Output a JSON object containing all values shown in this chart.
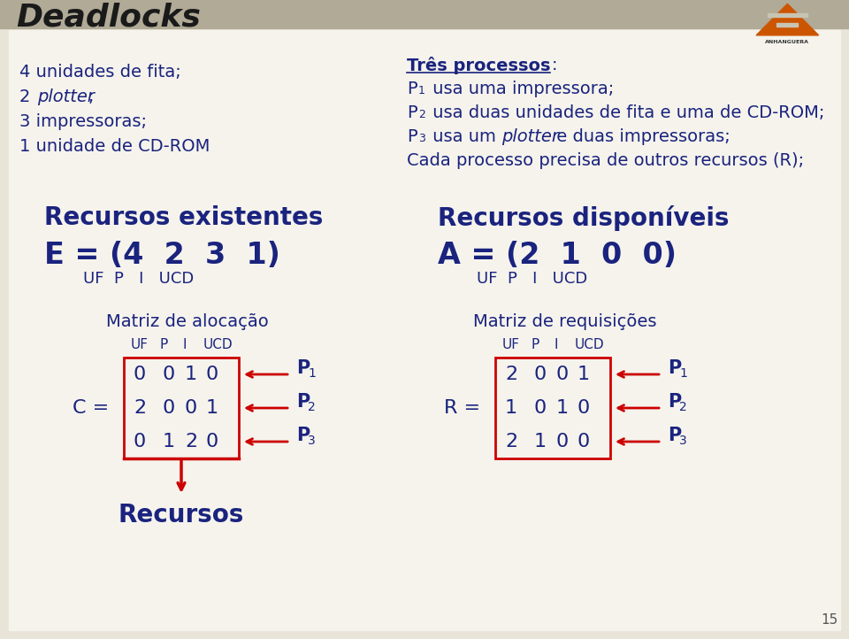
{
  "title": "Deadlocks",
  "bg_color": "#e8e4d8",
  "header_bg": "#c8c4b4",
  "white_bg": "#f5f3ec",
  "dark_blue": "#1a237e",
  "red_color": "#cc0000",
  "text_color": "#1a237e",
  "left_col_lines": [
    "4 unidades de fita;",
    "2 plotter;",
    "3 impressoras;",
    "1 unidade de CD-ROM"
  ],
  "right_col_title": "Três processos",
  "recursos_existentes_title": "Recursos existentes",
  "recursos_existentes_eq": "E = (4  2  3  1)",
  "recursos_existentes_sub": "UF  P   I   UCD",
  "recursos_disponiveis_title": "Recursos disponíveis",
  "recursos_disponiveis_eq": "A = (2  1  0  0)",
  "recursos_disponiveis_sub": "UF  P   I   UCD",
  "matriz_alocacao_title": "Matriz de alocação",
  "C_label": "C =",
  "C_matrix": [
    [
      0,
      0,
      1,
      0
    ],
    [
      2,
      0,
      0,
      1
    ],
    [
      0,
      1,
      2,
      0
    ]
  ],
  "recursos_label": "Recursos",
  "matriz_requisicoes_title": "Matriz de requisições",
  "R_label": "R =",
  "R_matrix": [
    [
      2,
      0,
      0,
      1
    ],
    [
      1,
      0,
      1,
      0
    ],
    [
      2,
      1,
      0,
      0
    ]
  ],
  "P_labels": [
    "P",
    "P",
    "P"
  ],
  "P_subs": [
    "1",
    "2",
    "3"
  ],
  "page_number": "15",
  "col_labels": [
    "UF",
    "P",
    "I",
    "UCD"
  ]
}
